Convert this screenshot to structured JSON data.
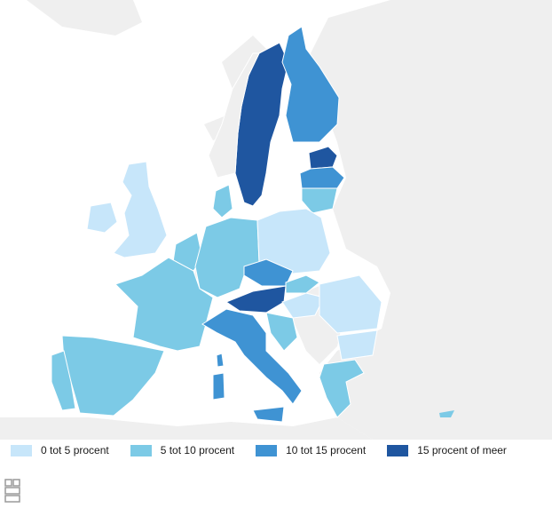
{
  "colors": {
    "sea": "#ffffff",
    "non_eu_land": "#efefef",
    "border": "#ffffff",
    "class_0_5": "#c7e6fa",
    "class_5_10": "#7ccae6",
    "class_10_15": "#3f93d3",
    "class_15_plus": "#1f56a0"
  },
  "legend": [
    {
      "label": "0 tot 5 procent",
      "color": "#c7e6fa"
    },
    {
      "label": "5 tot 10 procent",
      "color": "#7ccae6"
    },
    {
      "label": "10 tot 15 procent",
      "color": "#3f93d3"
    },
    {
      "label": "15 procent of meer",
      "color": "#1f56a0"
    }
  ],
  "map": {
    "classes_by_region": {
      "0 tot 5 procent": [
        "United Kingdom",
        "Ireland",
        "Poland",
        "Hungary",
        "Romania",
        "Bulgaria"
      ],
      "5 tot 10 procent": [
        "France",
        "Spain",
        "Portugal",
        "Germany",
        "Denmark",
        "Belgium",
        "Netherlands",
        "Lithuania",
        "Slovakia",
        "Slovenia",
        "Croatia",
        "Greece",
        "Cyprus"
      ],
      "10 tot 15 procent": [
        "Finland",
        "Latvia",
        "Czech Republic",
        "Italy"
      ],
      "15 procent of meer": [
        "Sweden",
        "Estonia",
        "Austria"
      ]
    }
  },
  "logo": {
    "icon": "cbs-logo"
  }
}
